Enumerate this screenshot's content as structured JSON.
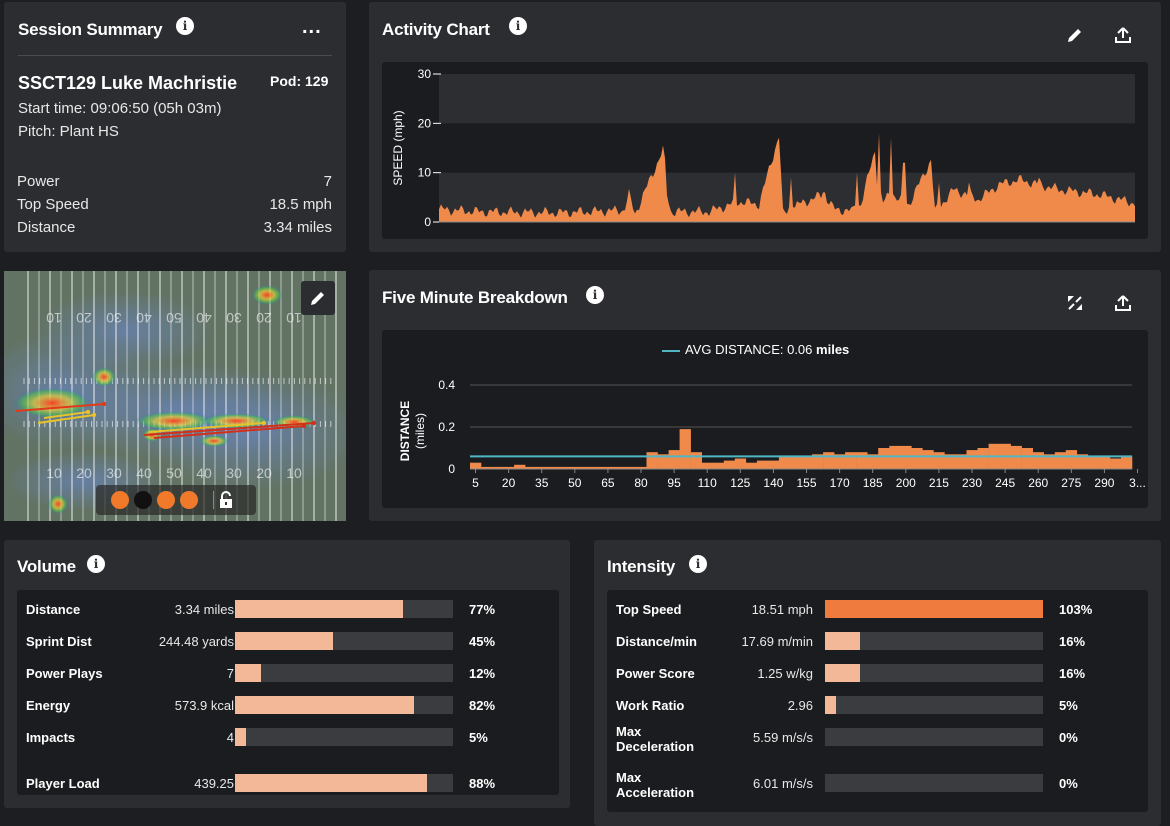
{
  "session_summary": {
    "title": "Session Summary",
    "more": "...",
    "player": "SSCT129 Luke Machristie",
    "pod": "Pod: 129",
    "start_time": "Start time: 09:06:50 (05h 03m)",
    "pitch": "Pitch: Plant HS",
    "stats": [
      {
        "label": "Power",
        "value": "7"
      },
      {
        "label": "Top Speed",
        "value": "18.5 mph"
      },
      {
        "label": "Distance",
        "value": "3.34 miles"
      }
    ]
  },
  "activity_chart": {
    "title": "Activity Chart",
    "ylabel": "SPEED (mph)",
    "yticks": [
      "30",
      "20",
      "10",
      "0"
    ],
    "edit_icon": "pencil-icon",
    "export_icon": "upload-icon",
    "accent": "#f08a4b"
  },
  "heatmap": {
    "yard_top": [
      "10",
      "20",
      "30",
      "40",
      "50",
      "40",
      "30",
      "20",
      "10"
    ],
    "yard_bottom": [
      "10",
      "20",
      "30",
      "40",
      "50",
      "40",
      "30",
      "20",
      "10"
    ],
    "dot_colors": [
      "#f07a2a",
      "#111111",
      "#f07a2a",
      "#f07a2a"
    ],
    "edit_icon": "pencil-icon",
    "lock_icon": "lock-icon"
  },
  "five_minute": {
    "title": "Five Minute Breakdown",
    "legend_label": "AVG DISTANCE: 0.06",
    "legend_unit": "miles",
    "expand_icon": "expand-icon",
    "export_icon": "upload-icon"
  },
  "chart_data": {
    "type": "bar",
    "ylabel": "DISTANCE",
    "ylabel_unit": "(miles)",
    "ylim": [
      0,
      0.4
    ],
    "yticks": [
      0,
      0.2,
      0.4
    ],
    "xtick_labels": [
      "5",
      "20",
      "35",
      "50",
      "65",
      "80",
      "95",
      "110",
      "125",
      "140",
      "155",
      "170",
      "185",
      "200",
      "215",
      "230",
      "245",
      "260",
      "275",
      "290",
      "3..."
    ],
    "average": 0.06,
    "categories": [
      5,
      10,
      15,
      20,
      25,
      30,
      35,
      40,
      45,
      50,
      55,
      60,
      65,
      70,
      75,
      80,
      85,
      90,
      95,
      100,
      105,
      110,
      115,
      120,
      125,
      130,
      135,
      140,
      145,
      150,
      155,
      160,
      165,
      170,
      175,
      180,
      185,
      190,
      195,
      200,
      205,
      210,
      215,
      220,
      225,
      230,
      235,
      240,
      245,
      250,
      255,
      260,
      265,
      270,
      275,
      280,
      285,
      290,
      295,
      300
    ],
    "values": [
      0.03,
      0.01,
      0.01,
      0.01,
      0.02,
      0.01,
      0.01,
      0.01,
      0.01,
      0.01,
      0.01,
      0.01,
      0.01,
      0.01,
      0.01,
      0.01,
      0.08,
      0.07,
      0.09,
      0.19,
      0.08,
      0.03,
      0.03,
      0.04,
      0.05,
      0.03,
      0.04,
      0.04,
      0.06,
      0.06,
      0.06,
      0.07,
      0.08,
      0.07,
      0.08,
      0.08,
      0.07,
      0.1,
      0.11,
      0.11,
      0.1,
      0.09,
      0.08,
      0.07,
      0.07,
      0.09,
      0.1,
      0.12,
      0.12,
      0.11,
      0.1,
      0.08,
      0.07,
      0.08,
      0.09,
      0.07,
      0.06,
      0.06,
      0.05,
      0.06
    ]
  },
  "volume": {
    "title": "Volume",
    "rows": [
      {
        "label": "Distance",
        "value": "3.34 miles",
        "pct": "77%",
        "fill": 0.77
      },
      {
        "label": "Sprint Dist",
        "value": "244.48 yards",
        "pct": "45%",
        "fill": 0.45
      },
      {
        "label": "Power Plays",
        "value": "7",
        "pct": "12%",
        "fill": 0.12
      },
      {
        "label": "Energy",
        "value": "573.9 kcal",
        "pct": "82%",
        "fill": 0.82
      },
      {
        "label": "Impacts",
        "value": "4",
        "pct": "5%",
        "fill": 0.05
      },
      {
        "label": "Player Load",
        "value": "439.25",
        "pct": "88%",
        "fill": 0.88
      }
    ]
  },
  "intensity": {
    "title": "Intensity",
    "rows": [
      {
        "label": "Top Speed",
        "value": "18.51 mph",
        "pct": "103%",
        "fill": 1.0,
        "color": "#f07b3f"
      },
      {
        "label": "Distance/min",
        "value": "17.69 m/min",
        "pct": "16%",
        "fill": 0.16
      },
      {
        "label": "Power Score",
        "value": "1.25 w/kg",
        "pct": "16%",
        "fill": 0.16
      },
      {
        "label": "Work Ratio",
        "value": "2.96",
        "pct": "5%",
        "fill": 0.05
      },
      {
        "label": "Max Deceleration",
        "l1": "Max",
        "l2": "Deceleration",
        "value": "5.59 m/s/s",
        "pct": "0%",
        "fill": 0
      },
      {
        "label": "Max Acceleration",
        "l1": "Max",
        "l2": "Acceleration",
        "value": "6.01 m/s/s",
        "pct": "0%",
        "fill": 0
      }
    ]
  }
}
